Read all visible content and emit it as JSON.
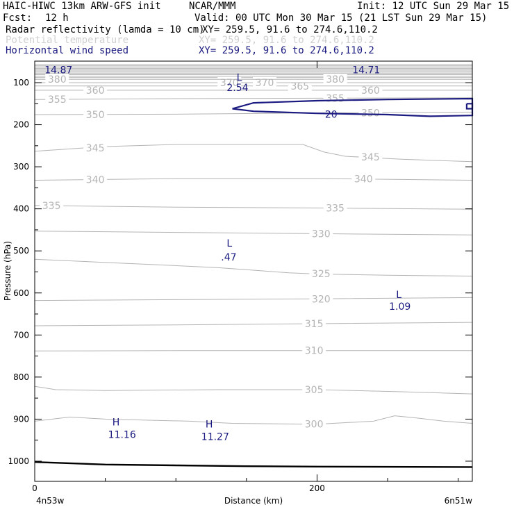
{
  "header": {
    "model": "HAIC-HIWC 13km ARW-GFS init",
    "org": "NCAR/MMM",
    "init": "Init: 12 UTC Sun 29 Mar 15",
    "fcst_label": "Fcst:",
    "fcst_value": "12 h",
    "valid": "Valid: 00 UTC Mon 30 Mar 15 (21 LST Sun 29 Mar 15)",
    "fields": [
      {
        "name": "Radar reflectivity (lamda = 10 cm)",
        "xy": "XY= 259.5, 91.6 to 274.6,110.2",
        "color": "#000000"
      },
      {
        "name": "Potential temperature",
        "xy": "XY= 259.5, 91.6 to 274.6,110.2",
        "color": "#c8c8c8"
      },
      {
        "name": "Horizontal wind speed",
        "xy": "XY= 259.5, 91.6 to 274.6,110.2",
        "color": "#1a1a80"
      }
    ]
  },
  "colors": {
    "theta": "#b4b4b4",
    "wind": "#1a1a80",
    "axis": "#000000",
    "ground": "#000000"
  },
  "chart_data": {
    "type": "line",
    "xlabel": "Distance (km)",
    "ylabel": "Pressure (hPa)",
    "xlim": [
      0,
      310
    ],
    "ylim_hpa": [
      1045,
      55
    ],
    "x_ticks": [
      0,
      200
    ],
    "x_tick_labels": [
      "0",
      "200"
    ],
    "x_minor_ticks": [
      50,
      100,
      150,
      250,
      300
    ],
    "y_ticks": [
      100,
      200,
      300,
      400,
      500,
      600,
      700,
      800,
      900,
      1000
    ],
    "y_tick_labels": [
      "100",
      "200",
      "300",
      "400",
      "500",
      "600",
      "700",
      "800",
      "900",
      "1000"
    ],
    "left_endpoint": "4n53w",
    "right_endpoint": "6n51w",
    "theta_contours": [
      {
        "level": 300,
        "label": "300",
        "label_x": 190,
        "pts": [
          [
            0,
            905
          ],
          [
            25,
            895
          ],
          [
            50,
            900
          ],
          [
            110,
            905
          ],
          [
            140,
            910
          ],
          [
            200,
            912
          ],
          [
            240,
            905
          ],
          [
            255,
            892
          ],
          [
            270,
            897
          ],
          [
            290,
            905
          ],
          [
            310,
            910
          ]
        ]
      },
      {
        "level": 305,
        "label": "305",
        "label_x": 190,
        "pts": [
          [
            0,
            822
          ],
          [
            15,
            830
          ],
          [
            50,
            832
          ],
          [
            130,
            830
          ],
          [
            200,
            830
          ],
          [
            260,
            835
          ],
          [
            310,
            840
          ]
        ]
      },
      {
        "level": 310,
        "label": "310",
        "label_x": 190,
        "pts": [
          [
            0,
            738
          ],
          [
            100,
            737
          ],
          [
            200,
            737
          ],
          [
            310,
            737
          ]
        ]
      },
      {
        "level": 315,
        "label": "315",
        "label_x": 190,
        "pts": [
          [
            0,
            678
          ],
          [
            100,
            676
          ],
          [
            200,
            673
          ],
          [
            310,
            670
          ]
        ]
      },
      {
        "level": 320,
        "label": "320",
        "label_x": 195,
        "pts": [
          [
            0,
            618
          ],
          [
            100,
            616
          ],
          [
            200,
            614
          ],
          [
            310,
            611
          ]
        ]
      },
      {
        "level": 325,
        "label": "325",
        "label_x": 195,
        "pts": [
          [
            0,
            520
          ],
          [
            100,
            535
          ],
          [
            130,
            540
          ],
          [
            180,
            552
          ],
          [
            200,
            555
          ],
          [
            250,
            558
          ],
          [
            310,
            560
          ]
        ]
      },
      {
        "level": 330,
        "label": "330",
        "label_x": 195,
        "pts": [
          [
            0,
            453
          ],
          [
            100,
            456
          ],
          [
            200,
            459
          ],
          [
            310,
            462
          ]
        ]
      },
      {
        "level": 335,
        "label": "335",
        "label_x": 205,
        "label2": "335",
        "label2_x": 4,
        "pts": [
          [
            0,
            392
          ],
          [
            100,
            396
          ],
          [
            200,
            398
          ],
          [
            310,
            401
          ]
        ]
      },
      {
        "level": 340,
        "label": "340",
        "label_x": 35,
        "label2": "340",
        "label2_x": 225,
        "pts": [
          [
            0,
            332
          ],
          [
            100,
            328
          ],
          [
            200,
            328
          ],
          [
            310,
            332
          ]
        ]
      },
      {
        "level": 345,
        "label": "345",
        "label_x": 35,
        "label2": "345",
        "label2_x": 230,
        "pts": [
          [
            0,
            263
          ],
          [
            50,
            252
          ],
          [
            100,
            247
          ],
          [
            190,
            247
          ],
          [
            205,
            265
          ],
          [
            220,
            275
          ],
          [
            260,
            282
          ],
          [
            310,
            288
          ]
        ]
      },
      {
        "level": 350,
        "label": "350",
        "label_x": 35,
        "label2": "350",
        "label2_x": 230,
        "pts": [
          [
            0,
            176
          ],
          [
            100,
            175
          ],
          [
            200,
            172
          ],
          [
            310,
            170
          ]
        ]
      },
      {
        "level": 355,
        "label": "355",
        "label_x": 8,
        "label2": "355",
        "label2_x": 205,
        "pts": [
          [
            0,
            140
          ],
          [
            100,
            138
          ],
          [
            200,
            137
          ],
          [
            310,
            136
          ]
        ]
      },
      {
        "level": 360,
        "label": "360",
        "label_x": 35,
        "label2": "360",
        "label2_x": 230,
        "pts": [
          [
            0,
            118
          ],
          [
            100,
            118
          ],
          [
            200,
            118
          ],
          [
            310,
            118
          ]
        ]
      },
      {
        "level": 365,
        "label": "365",
        "label_x": 180,
        "pts": [
          [
            0,
            108
          ],
          [
            100,
            108
          ],
          [
            200,
            108
          ],
          [
            310,
            108
          ]
        ]
      },
      {
        "level": 370,
        "label": "370",
        "label_x": 155,
        "label2": "370",
        "label2_x": 130,
        "pts": [
          [
            0,
            100
          ],
          [
            100,
            100
          ],
          [
            200,
            100
          ],
          [
            310,
            100
          ]
        ]
      },
      {
        "level": 380,
        "label": "380",
        "label_x": 8,
        "label2": "380",
        "label2_x": 205,
        "pts": [
          [
            0,
            92
          ],
          [
            100,
            92
          ],
          [
            200,
            92
          ],
          [
            310,
            92
          ]
        ]
      }
    ],
    "dense_top_lines_hpa": [
      57,
      60,
      63,
      66,
      69,
      72,
      75,
      78,
      81,
      85,
      88
    ],
    "wind_contours": [
      {
        "level": 20,
        "label": "20",
        "label_x": 210,
        "pts": [
          [
            140,
            162
          ],
          [
            155,
            148
          ],
          [
            200,
            143
          ],
          [
            250,
            140
          ],
          [
            310,
            138
          ],
          [
            310,
            178
          ],
          [
            280,
            180
          ],
          [
            250,
            176
          ],
          [
            200,
            173
          ],
          [
            155,
            168
          ],
          [
            140,
            162
          ]
        ]
      },
      {
        "level": 20,
        "pts": [
          [
            306,
            150
          ],
          [
            310,
            150
          ],
          [
            310,
            162
          ],
          [
            306,
            162
          ],
          [
            306,
            150
          ]
        ]
      }
    ],
    "ground_pts": [
      [
        0,
        1002
      ],
      [
        50,
        1008
      ],
      [
        100,
        1010
      ],
      [
        150,
        1012
      ],
      [
        200,
        1013
      ],
      [
        310,
        1014
      ]
    ],
    "annotations": [
      {
        "text": "14.87",
        "x": 7,
        "p": 78,
        "color": "#1a1a80"
      },
      {
        "text": "14.71",
        "x": 225,
        "p": 78,
        "color": "#1a1a80"
      },
      {
        "text": "L",
        "x": 143,
        "p": 96,
        "color": "#1a1a80"
      },
      {
        "text": "2.54",
        "x": 136,
        "p": 120,
        "color": "#1a1a80"
      },
      {
        "text": "L",
        "x": 136,
        "p": 490,
        "color": "#1a1a80"
      },
      {
        "text": ".47",
        "x": 132,
        "p": 523,
        "color": "#1a1a80"
      },
      {
        "text": "L",
        "x": 256,
        "p": 612,
        "color": "#1a1a80"
      },
      {
        "text": "1.09",
        "x": 251,
        "p": 640,
        "color": "#1a1a80"
      },
      {
        "text": "H",
        "x": 55,
        "p": 915,
        "color": "#1a1a80"
      },
      {
        "text": "11.16",
        "x": 52,
        "p": 945,
        "color": "#1a1a80"
      },
      {
        "text": "H",
        "x": 121,
        "p": 920,
        "color": "#1a1a80"
      },
      {
        "text": "11.27",
        "x": 118,
        "p": 950,
        "color": "#1a1a80"
      }
    ]
  }
}
